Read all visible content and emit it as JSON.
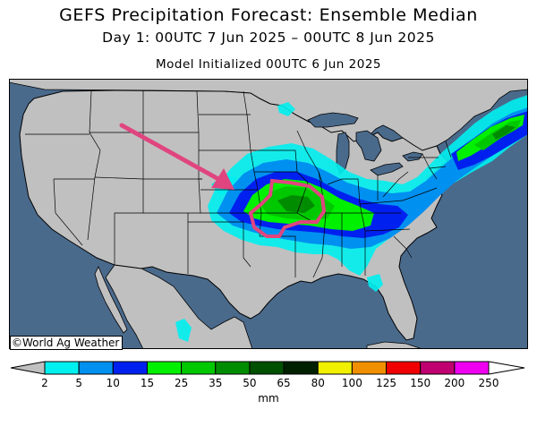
{
  "title": "GEFS Precipitation Forecast: Ensemble Median",
  "subtitle": "Day 1: 00UTC 7 Jun 2025 – 00UTC 8 Jun 2025",
  "init_text": "Model Initialized 00UTC 6 Jun 2025",
  "credit": "©World Ag Weather",
  "colors": {
    "ocean": "#4a6a8c",
    "land": "#c0c0c0",
    "border": "#000000",
    "highlight": "#e0457f"
  },
  "legend": {
    "unit": "mm",
    "bins": [
      {
        "label": "2",
        "color": "#00f0f0"
      },
      {
        "label": "5",
        "color": "#0090f0"
      },
      {
        "label": "10",
        "color": "#0020f0"
      },
      {
        "label": "15",
        "color": "#00f000"
      },
      {
        "label": "25",
        "color": "#00c800"
      },
      {
        "label": "35",
        "color": "#008c00"
      },
      {
        "label": "50",
        "color": "#005000"
      },
      {
        "label": "65",
        "color": "#002000"
      },
      {
        "label": "80",
        "color": "#f0f000"
      },
      {
        "label": "100",
        "color": "#f09000"
      },
      {
        "label": "125",
        "color": "#f00000"
      },
      {
        "label": "150",
        "color": "#c00070"
      },
      {
        "label": "200",
        "color": "#f000f0"
      },
      {
        "label": "250",
        "color": "#a050e0"
      }
    ]
  }
}
